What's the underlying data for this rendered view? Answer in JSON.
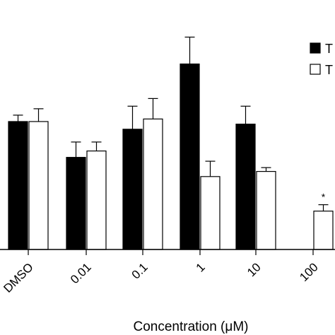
{
  "chart_data": {
    "type": "bar",
    "categories": [
      "DMSO",
      "0.01",
      "0.1",
      "1",
      "10",
      "100"
    ],
    "series": [
      {
        "name": "T",
        "fill": "#000000",
        "values": [
          1.0,
          0.72,
          0.94,
          1.45,
          0.98,
          null
        ],
        "errors": [
          0.05,
          0.12,
          0.18,
          0.21,
          0.14,
          null
        ]
      },
      {
        "name": "T",
        "fill": "#ffffff",
        "values": [
          1.0,
          0.77,
          1.02,
          0.57,
          0.61,
          0.3
        ],
        "errors": [
          0.1,
          0.07,
          0.16,
          0.12,
          0.03,
          0.05
        ]
      }
    ],
    "ylim": [
      0,
      1.95
    ],
    "xlabel": "Concentration (μM)",
    "annotations": [
      {
        "category": "100",
        "series": 1,
        "text": "*"
      }
    ],
    "legend": {
      "placement": "top-right"
    }
  }
}
